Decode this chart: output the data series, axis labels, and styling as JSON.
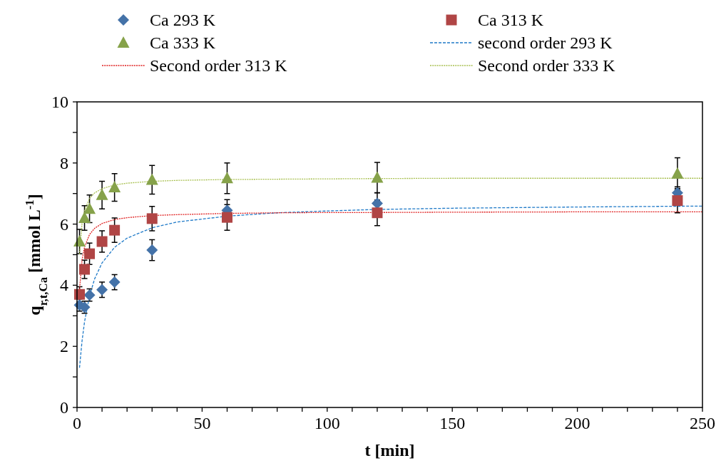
{
  "chart_data": {
    "type": "scatter",
    "xlabel": "t [min]",
    "ylabel": "q$_{r,t,Ca}$ [mmol L$^{-1}$]",
    "xlim": [
      0,
      250
    ],
    "ylim": [
      0,
      10
    ],
    "xticks": [
      0,
      {
        "value": 10,
        "label": null
      },
      {
        "value": 20,
        "label": null
      },
      {
        "value": 30,
        "label": null
      },
      {
        "value": 40,
        "label": null
      },
      50,
      {
        "value": 60,
        "label": null
      },
      {
        "value": 70,
        "label": null
      },
      {
        "value": 80,
        "label": null
      },
      {
        "value": 90,
        "label": null
      },
      100,
      {
        "value": 110,
        "label": null
      },
      {
        "value": 120,
        "label": null
      },
      {
        "value": 130,
        "label": null
      },
      {
        "value": 140,
        "label": null
      },
      150,
      {
        "value": 160,
        "label": null
      },
      {
        "value": 170,
        "label": null
      },
      {
        "value": 180,
        "label": null
      },
      {
        "value": 190,
        "label": null
      },
      200,
      {
        "value": 210,
        "label": null
      },
      {
        "value": 220,
        "label": null
      },
      {
        "value": 230,
        "label": null
      },
      {
        "value": 240,
        "label": null
      },
      250
    ],
    "yticks": [
      0,
      {
        "value": 1,
        "label": null
      },
      2,
      {
        "value": 3,
        "label": null
      },
      4,
      {
        "value": 5,
        "label": null
      },
      6,
      {
        "value": 7,
        "label": null
      },
      8,
      {
        "value": 9,
        "label": null
      },
      10
    ],
    "grid": false,
    "legend": "top",
    "x": [
      1,
      3,
      5,
      10,
      15,
      30,
      60,
      120,
      240
    ],
    "series": [
      {
        "name": "Ca 293 K",
        "marker": "diamond",
        "color": "#4472a8",
        "values": [
          3.35,
          3.28,
          3.68,
          3.85,
          4.1,
          5.15,
          6.45,
          6.68,
          7.02
        ],
        "errors": [
          0.2,
          0.2,
          0.2,
          0.25,
          0.25,
          0.34,
          0.35,
          0.35,
          0.2
        ]
      },
      {
        "name": "Ca 313 K",
        "marker": "square",
        "color": "#b04545",
        "values": [
          3.7,
          4.52,
          5.03,
          5.43,
          5.8,
          6.18,
          6.22,
          6.37,
          6.77
        ],
        "errors": [
          0.25,
          0.3,
          0.35,
          0.35,
          0.4,
          0.4,
          0.42,
          0.42,
          0.4
        ]
      },
      {
        "name": "Ca 333 K",
        "marker": "triangle",
        "color": "#86a24a",
        "values": [
          5.43,
          6.2,
          6.5,
          6.95,
          7.2,
          7.45,
          7.5,
          7.52,
          7.65
        ],
        "errors": [
          0.4,
          0.4,
          0.45,
          0.45,
          0.45,
          0.47,
          0.5,
          0.5,
          0.52
        ]
      },
      {
        "name": "second order 293 K",
        "type": "line",
        "marker": "none",
        "line_style": "dashed",
        "color": "#1f7ac8",
        "x": [
          1,
          2,
          3,
          5,
          7,
          10,
          15,
          20,
          30,
          40,
          60,
          80,
          100,
          120,
          150,
          200,
          250
        ],
        "values": [
          1.3,
          2.17,
          2.8,
          3.65,
          4.2,
          4.73,
          5.24,
          5.54,
          5.88,
          6.07,
          6.26,
          6.37,
          6.43,
          6.48,
          6.52,
          6.56,
          6.59
        ]
      },
      {
        "name": "Second order 313 K",
        "type": "line",
        "marker": "none",
        "line_style": "dotted",
        "color": "#e02020",
        "x": [
          1,
          2,
          3,
          5,
          7,
          10,
          15,
          20,
          30,
          40,
          60,
          80,
          100,
          120,
          150,
          200,
          250
        ],
        "values": [
          3.85,
          4.82,
          5.25,
          5.66,
          5.86,
          6.02,
          6.15,
          6.21,
          6.28,
          6.31,
          6.35,
          6.37,
          6.38,
          6.38,
          6.39,
          6.4,
          6.4
        ]
      },
      {
        "name": "Second order 333 K",
        "type": "line",
        "marker": "none",
        "line_style": "dotted",
        "color": "#a8c050",
        "x": [
          1,
          2,
          3,
          5,
          7,
          10,
          15,
          20,
          30,
          40,
          60,
          80,
          100,
          120,
          150,
          200,
          250
        ],
        "values": [
          5.01,
          6.02,
          6.45,
          6.84,
          7.02,
          7.16,
          7.28,
          7.34,
          7.4,
          7.43,
          7.46,
          7.47,
          7.48,
          7.49,
          7.5,
          7.5,
          7.5
        ]
      }
    ]
  }
}
